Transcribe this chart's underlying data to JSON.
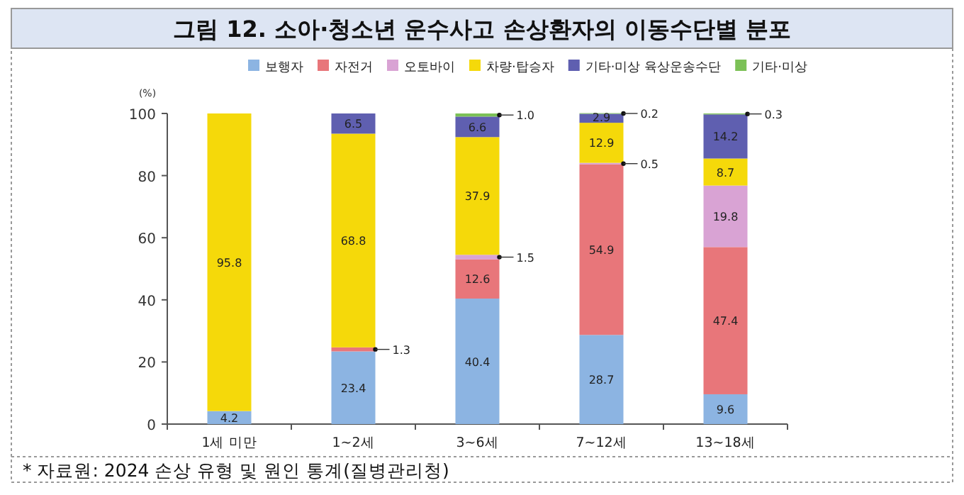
{
  "chart_data": {
    "type": "bar",
    "stacked": true,
    "title": "그림 12. 소아·청소년 운수사고 손상환자의 이동수단별 분포",
    "ylabel": "(%)",
    "categories": [
      "1세 미만",
      "1~2세",
      "3~6세",
      "7~12세",
      "13~18세"
    ],
    "series": [
      {
        "name": "보행자",
        "color": "#8cb4e2",
        "values": [
          4.2,
          23.4,
          40.4,
          28.7,
          9.6
        ],
        "value_labels": [
          "4.2",
          "23.4",
          "40.4",
          "28.7",
          "9.6"
        ]
      },
      {
        "name": "자전거",
        "color": "#e8767a",
        "values": [
          null,
          1.3,
          12.6,
          54.9,
          47.4
        ],
        "value_labels": [
          null,
          "1.3",
          "12.6",
          "54.9",
          "47.4"
        ]
      },
      {
        "name": "오토바이",
        "color": "#d9a3d4",
        "values": [
          null,
          null,
          1.5,
          0.5,
          19.8
        ],
        "value_labels": [
          null,
          null,
          "1.5",
          "0.5",
          "19.8"
        ]
      },
      {
        "name": "차량·탑승자",
        "color": "#f5d90a",
        "values": [
          95.8,
          68.8,
          37.9,
          12.9,
          8.7
        ],
        "value_labels": [
          "95.8",
          "68.8",
          "37.9",
          "12.9",
          "8.7"
        ]
      },
      {
        "name": "기타·미상 육상운송수단",
        "color": "#5f5fb0",
        "values": [
          null,
          6.5,
          6.6,
          2.9,
          14.2
        ],
        "value_labels": [
          null,
          "6.5",
          "6.6",
          "2.9",
          "14.2"
        ]
      },
      {
        "name": "기타·미상",
        "color": "#7cc157",
        "values": [
          null,
          null,
          1.0,
          0.2,
          0.3
        ],
        "value_labels": [
          null,
          null,
          "1.0",
          "0.2",
          "0.3"
        ]
      }
    ],
    "ylim": [
      0,
      100
    ],
    "yticks": [
      0,
      20,
      40,
      60,
      80,
      100
    ],
    "legend": "top",
    "annotations": [
      "* 자료원: 2024 손상 유형 및 원인 통계(질병관리청)"
    ]
  }
}
